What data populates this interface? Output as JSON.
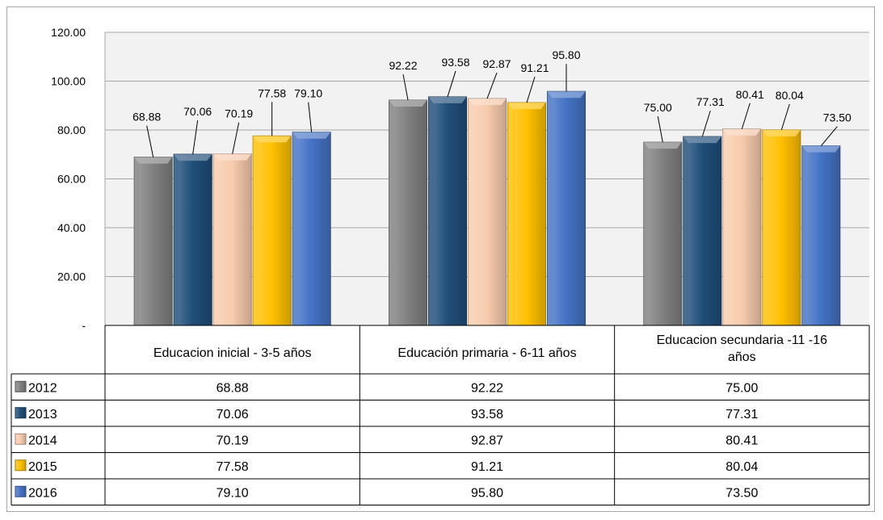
{
  "chart_data": {
    "type": "bar",
    "categories": [
      "Educacion inicial - 3-5 años",
      "Educación primaria - 6-11 años",
      "Educacion secundaria -11 -16 años"
    ],
    "series": [
      {
        "name": "2012",
        "values": [
          68.88,
          92.22,
          75.0
        ],
        "color": "#808080"
      },
      {
        "name": "2013",
        "values": [
          70.06,
          93.58,
          77.31
        ],
        "color": "#1f4e79"
      },
      {
        "name": "2014",
        "values": [
          70.19,
          92.87,
          80.41
        ],
        "color": "#f8cbad"
      },
      {
        "name": "2015",
        "values": [
          77.58,
          91.21,
          80.04
        ],
        "color": "#ffc000"
      },
      {
        "name": "2016",
        "values": [
          79.1,
          95.8,
          73.5
        ],
        "color": "#4472c4"
      }
    ],
    "y_ticks": [
      "-",
      "20.00",
      "40.00",
      "60.00",
      "80.00",
      "100.00",
      "120.00"
    ],
    "ylim": [
      0,
      120
    ],
    "grid": true,
    "legend": "data-table-left",
    "data_table": true
  }
}
